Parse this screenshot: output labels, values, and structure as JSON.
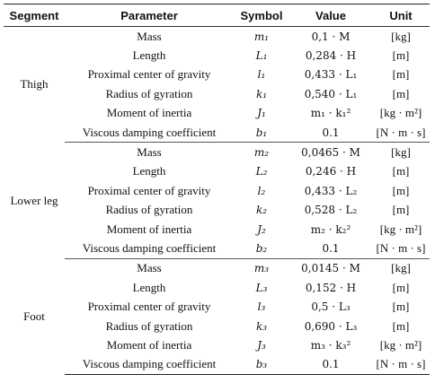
{
  "headers": [
    "Segment",
    "Parameter",
    "Symbol",
    "Value",
    "Unit"
  ],
  "groups": [
    {
      "segment": "Thigh",
      "rows": [
        {
          "parameter": "Mass",
          "symbol": "m₁",
          "value": "0,1 · M",
          "unit": "[kg]"
        },
        {
          "parameter": "Length",
          "symbol": "L₁",
          "value": "0,284 · H",
          "unit": "[m]"
        },
        {
          "parameter": "Proximal center of gravity",
          "symbol": "l₁",
          "value": "0,433 · L₁",
          "unit": "[m]"
        },
        {
          "parameter": "Radius of gyration",
          "symbol": "k₁",
          "value": "0,540 · L₁",
          "unit": "[m]"
        },
        {
          "parameter": "Moment of inertia",
          "symbol": "J₁",
          "value": "m₁ · k₁²",
          "unit": "[kg · m²]"
        },
        {
          "parameter": "Viscous damping coefficient",
          "symbol": "b₁",
          "value": "0.1",
          "unit": "[N · m · s]"
        }
      ]
    },
    {
      "segment": "Lower leg",
      "rows": [
        {
          "parameter": "Mass",
          "symbol": "m₂",
          "value": "0,0465 · M",
          "unit": "[kg]"
        },
        {
          "parameter": "Length",
          "symbol": "L₂",
          "value": "0,246 · H",
          "unit": "[m]"
        },
        {
          "parameter": "Proximal center of gravity",
          "symbol": "l₂",
          "value": "0,433 · L₂",
          "unit": "[m]"
        },
        {
          "parameter": "Radius of gyration",
          "symbol": "k₂",
          "value": "0,528 · L₂",
          "unit": "[m]"
        },
        {
          "parameter": "Moment of inertia",
          "symbol": "J₂",
          "value": "m₂ · k₂²",
          "unit": "[kg · m²]"
        },
        {
          "parameter": "Viscous damping coefficient",
          "symbol": "b₂",
          "value": "0.1",
          "unit": "[N · m · s]"
        }
      ]
    },
    {
      "segment": "Foot",
      "rows": [
        {
          "parameter": "Mass",
          "symbol": "m₃",
          "value": "0,0145 · M",
          "unit": "[kg]"
        },
        {
          "parameter": "Length",
          "symbol": "L₃",
          "value": "0,152 · H",
          "unit": "[m]"
        },
        {
          "parameter": "Proximal center of gravity",
          "symbol": "l₃",
          "value": "0,5 · L₃",
          "unit": "[m]"
        },
        {
          "parameter": "Radius of gyration",
          "symbol": "k₃",
          "value": "0,690 · L₃",
          "unit": "[m]"
        },
        {
          "parameter": "Moment of inertia",
          "symbol": "J₃",
          "value": "m₃ · k₃²",
          "unit": "[kg · m²]"
        },
        {
          "parameter": "Viscous damping coefficient",
          "symbol": "b₃",
          "value": "0.1",
          "unit": "[N · m · s]"
        }
      ]
    }
  ]
}
